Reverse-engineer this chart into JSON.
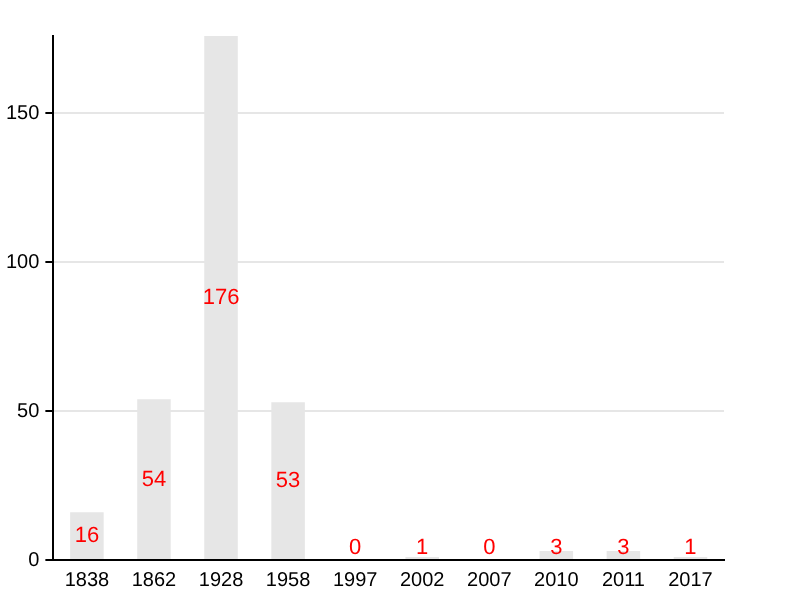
{
  "chart_data": {
    "type": "bar",
    "categories": [
      "1838",
      "1862",
      "1928",
      "1958",
      "1997",
      "2002",
      "2007",
      "2010",
      "2011",
      "2017"
    ],
    "values": [
      16,
      54,
      176,
      53,
      0,
      1,
      0,
      3,
      3,
      1
    ],
    "color": "#e6e6e6",
    "ylim": [
      0,
      176
    ],
    "yticks": [
      0,
      50,
      100,
      150
    ],
    "grid": "y",
    "data_labels": true,
    "legend": false
  }
}
